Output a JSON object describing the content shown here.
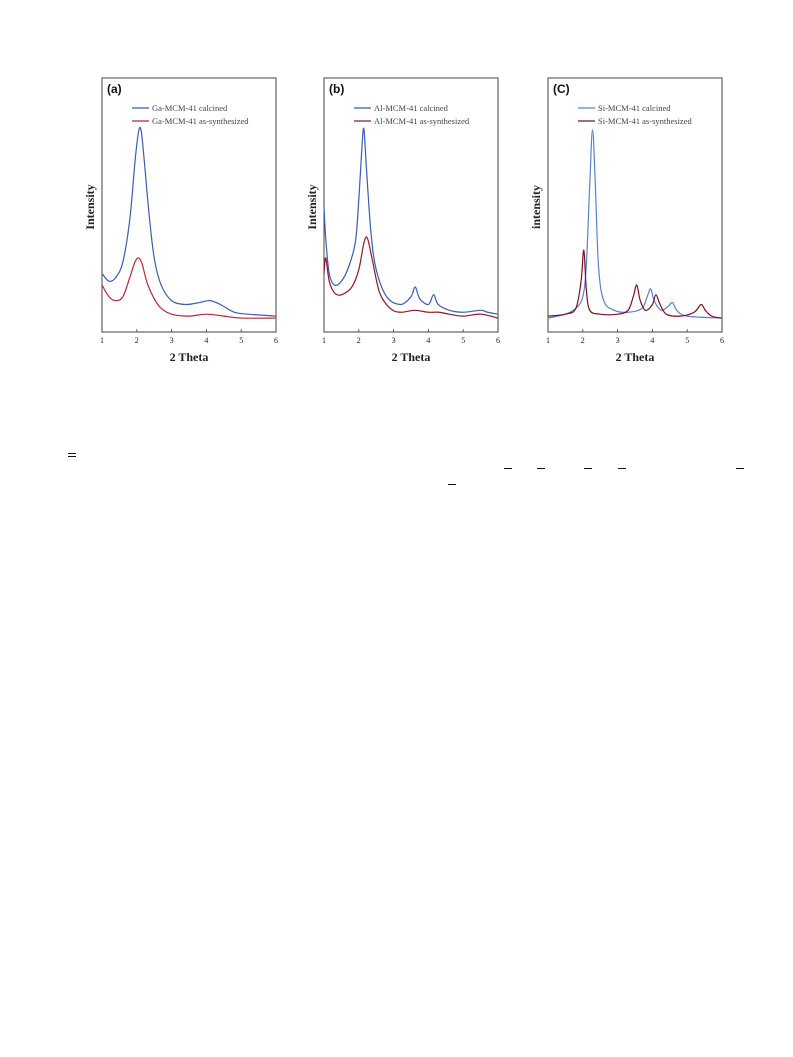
{
  "chart_data": [
    {
      "type": "line",
      "panel_label": "(a)",
      "xlabel": "2 Theta",
      "ylabel": "Intensity",
      "xlim": [
        1,
        6
      ],
      "ylim": [
        0,
        100
      ],
      "x_ticks": [
        "1",
        "2",
        "3",
        "4",
        "5",
        "6"
      ],
      "y_ticks_labeled": false,
      "legend_position": "top",
      "series": [
        {
          "name": "Ga-MCM-41 calcined",
          "color": "#3b5cb0",
          "points": [
            [
              1.0,
              24
            ],
            [
              1.2,
              20
            ],
            [
              1.4,
              22
            ],
            [
              1.6,
              30
            ],
            [
              1.8,
              52
            ],
            [
              1.95,
              82
            ],
            [
              2.05,
              97
            ],
            [
              2.12,
              98
            ],
            [
              2.2,
              85
            ],
            [
              2.35,
              55
            ],
            [
              2.5,
              32
            ],
            [
              2.7,
              18
            ],
            [
              3.0,
              10
            ],
            [
              3.4,
              8
            ],
            [
              3.8,
              9
            ],
            [
              4.1,
              10
            ],
            [
              4.4,
              8
            ],
            [
              4.8,
              4
            ],
            [
              5.2,
              3
            ],
            [
              6.0,
              2
            ]
          ]
        },
        {
          "name": "Ga-MCM-41 as-synthesized",
          "color": "#b8283a",
          "points": [
            [
              1.0,
              18
            ],
            [
              1.2,
              12
            ],
            [
              1.4,
              10
            ],
            [
              1.6,
              12
            ],
            [
              1.8,
              22
            ],
            [
              1.95,
              30
            ],
            [
              2.05,
              32
            ],
            [
              2.15,
              29
            ],
            [
              2.3,
              19
            ],
            [
              2.5,
              11
            ],
            [
              2.7,
              6
            ],
            [
              3.0,
              3
            ],
            [
              3.5,
              2
            ],
            [
              4.0,
              3
            ],
            [
              4.5,
              2
            ],
            [
              5.0,
              1
            ],
            [
              6.0,
              1
            ]
          ]
        }
      ]
    },
    {
      "type": "line",
      "panel_label": "(b)",
      "xlabel": "2 Theta",
      "ylabel": "Intensity",
      "xlim": [
        1,
        6
      ],
      "ylim": [
        0,
        100
      ],
      "x_ticks": [
        "1",
        "2",
        "3",
        "4",
        "5",
        "6"
      ],
      "y_ticks_labeled": false,
      "legend_position": "top",
      "series": [
        {
          "name": "Al-MCM-41 calcined",
          "color": "#3b5cb0",
          "points": [
            [
              1.0,
              58
            ],
            [
              1.05,
              42
            ],
            [
              1.15,
              24
            ],
            [
              1.3,
              18
            ],
            [
              1.5,
              20
            ],
            [
              1.7,
              27
            ],
            [
              1.9,
              40
            ],
            [
              2.0,
              62
            ],
            [
              2.1,
              92
            ],
            [
              2.15,
              98
            ],
            [
              2.22,
              78
            ],
            [
              2.35,
              45
            ],
            [
              2.5,
              26
            ],
            [
              2.8,
              12
            ],
            [
              3.2,
              8
            ],
            [
              3.5,
              12
            ],
            [
              3.62,
              17
            ],
            [
              3.75,
              11
            ],
            [
              4.0,
              8
            ],
            [
              4.15,
              13
            ],
            [
              4.28,
              8
            ],
            [
              4.6,
              5
            ],
            [
              5.0,
              4
            ],
            [
              5.5,
              5
            ],
            [
              5.7,
              4
            ],
            [
              6.0,
              3
            ]
          ]
        },
        {
          "name": "Al-MCM-41 as-synthesized",
          "color": "#8a1c2a",
          "points": [
            [
              1.0,
              24
            ],
            [
              1.05,
              32
            ],
            [
              1.15,
              20
            ],
            [
              1.3,
              14
            ],
            [
              1.5,
              13
            ],
            [
              1.8,
              17
            ],
            [
              2.0,
              26
            ],
            [
              2.15,
              40
            ],
            [
              2.25,
              42
            ],
            [
              2.4,
              30
            ],
            [
              2.6,
              14
            ],
            [
              2.9,
              6
            ],
            [
              3.2,
              4
            ],
            [
              3.6,
              5
            ],
            [
              4.0,
              4
            ],
            [
              4.3,
              4
            ],
            [
              4.6,
              3
            ],
            [
              5.0,
              2
            ],
            [
              5.5,
              3
            ],
            [
              6.0,
              1
            ]
          ]
        }
      ]
    },
    {
      "type": "line",
      "panel_label": "(C)",
      "xlabel": "2 Theta",
      "ylabel": "intensity",
      "xlim": [
        1,
        6
      ],
      "ylim": [
        0,
        100
      ],
      "x_ticks": [
        "1",
        "2",
        "3",
        "4",
        "5",
        "6"
      ],
      "y_ticks_labeled": false,
      "legend_position": "top",
      "series": [
        {
          "name": "Si-MCM-41 calcined",
          "color": "#5b7fd6",
          "points": [
            [
              1.0,
              1
            ],
            [
              1.5,
              3
            ],
            [
              1.8,
              6
            ],
            [
              2.0,
              12
            ],
            [
              2.1,
              28
            ],
            [
              2.2,
              70
            ],
            [
              2.28,
              98
            ],
            [
              2.36,
              70
            ],
            [
              2.45,
              28
            ],
            [
              2.6,
              10
            ],
            [
              2.9,
              5
            ],
            [
              3.3,
              4
            ],
            [
              3.7,
              6
            ],
            [
              3.85,
              12
            ],
            [
              3.95,
              16
            ],
            [
              4.05,
              10
            ],
            [
              4.25,
              5
            ],
            [
              4.45,
              7
            ],
            [
              4.58,
              9
            ],
            [
              4.7,
              5
            ],
            [
              5.0,
              2
            ],
            [
              6.0,
              1
            ]
          ]
        },
        {
          "name": "Si-MCM-41 as-synthesized",
          "color": "#7a1020",
          "points": [
            [
              1.0,
              2
            ],
            [
              1.5,
              3
            ],
            [
              1.8,
              6
            ],
            [
              1.95,
              20
            ],
            [
              2.03,
              36
            ],
            [
              2.1,
              16
            ],
            [
              2.2,
              5
            ],
            [
              2.5,
              3
            ],
            [
              3.0,
              3
            ],
            [
              3.3,
              5
            ],
            [
              3.45,
              12
            ],
            [
              3.55,
              18
            ],
            [
              3.65,
              10
            ],
            [
              3.8,
              5
            ],
            [
              4.0,
              8
            ],
            [
              4.1,
              13
            ],
            [
              4.22,
              8
            ],
            [
              4.4,
              3
            ],
            [
              4.8,
              2
            ],
            [
              5.2,
              4
            ],
            [
              5.4,
              8
            ],
            [
              5.52,
              5
            ],
            [
              5.7,
              2
            ],
            [
              6.0,
              1
            ]
          ]
        }
      ]
    }
  ],
  "text_fragments": [
    "=",
    "–",
    "–",
    "–",
    "–",
    "–",
    "–"
  ]
}
